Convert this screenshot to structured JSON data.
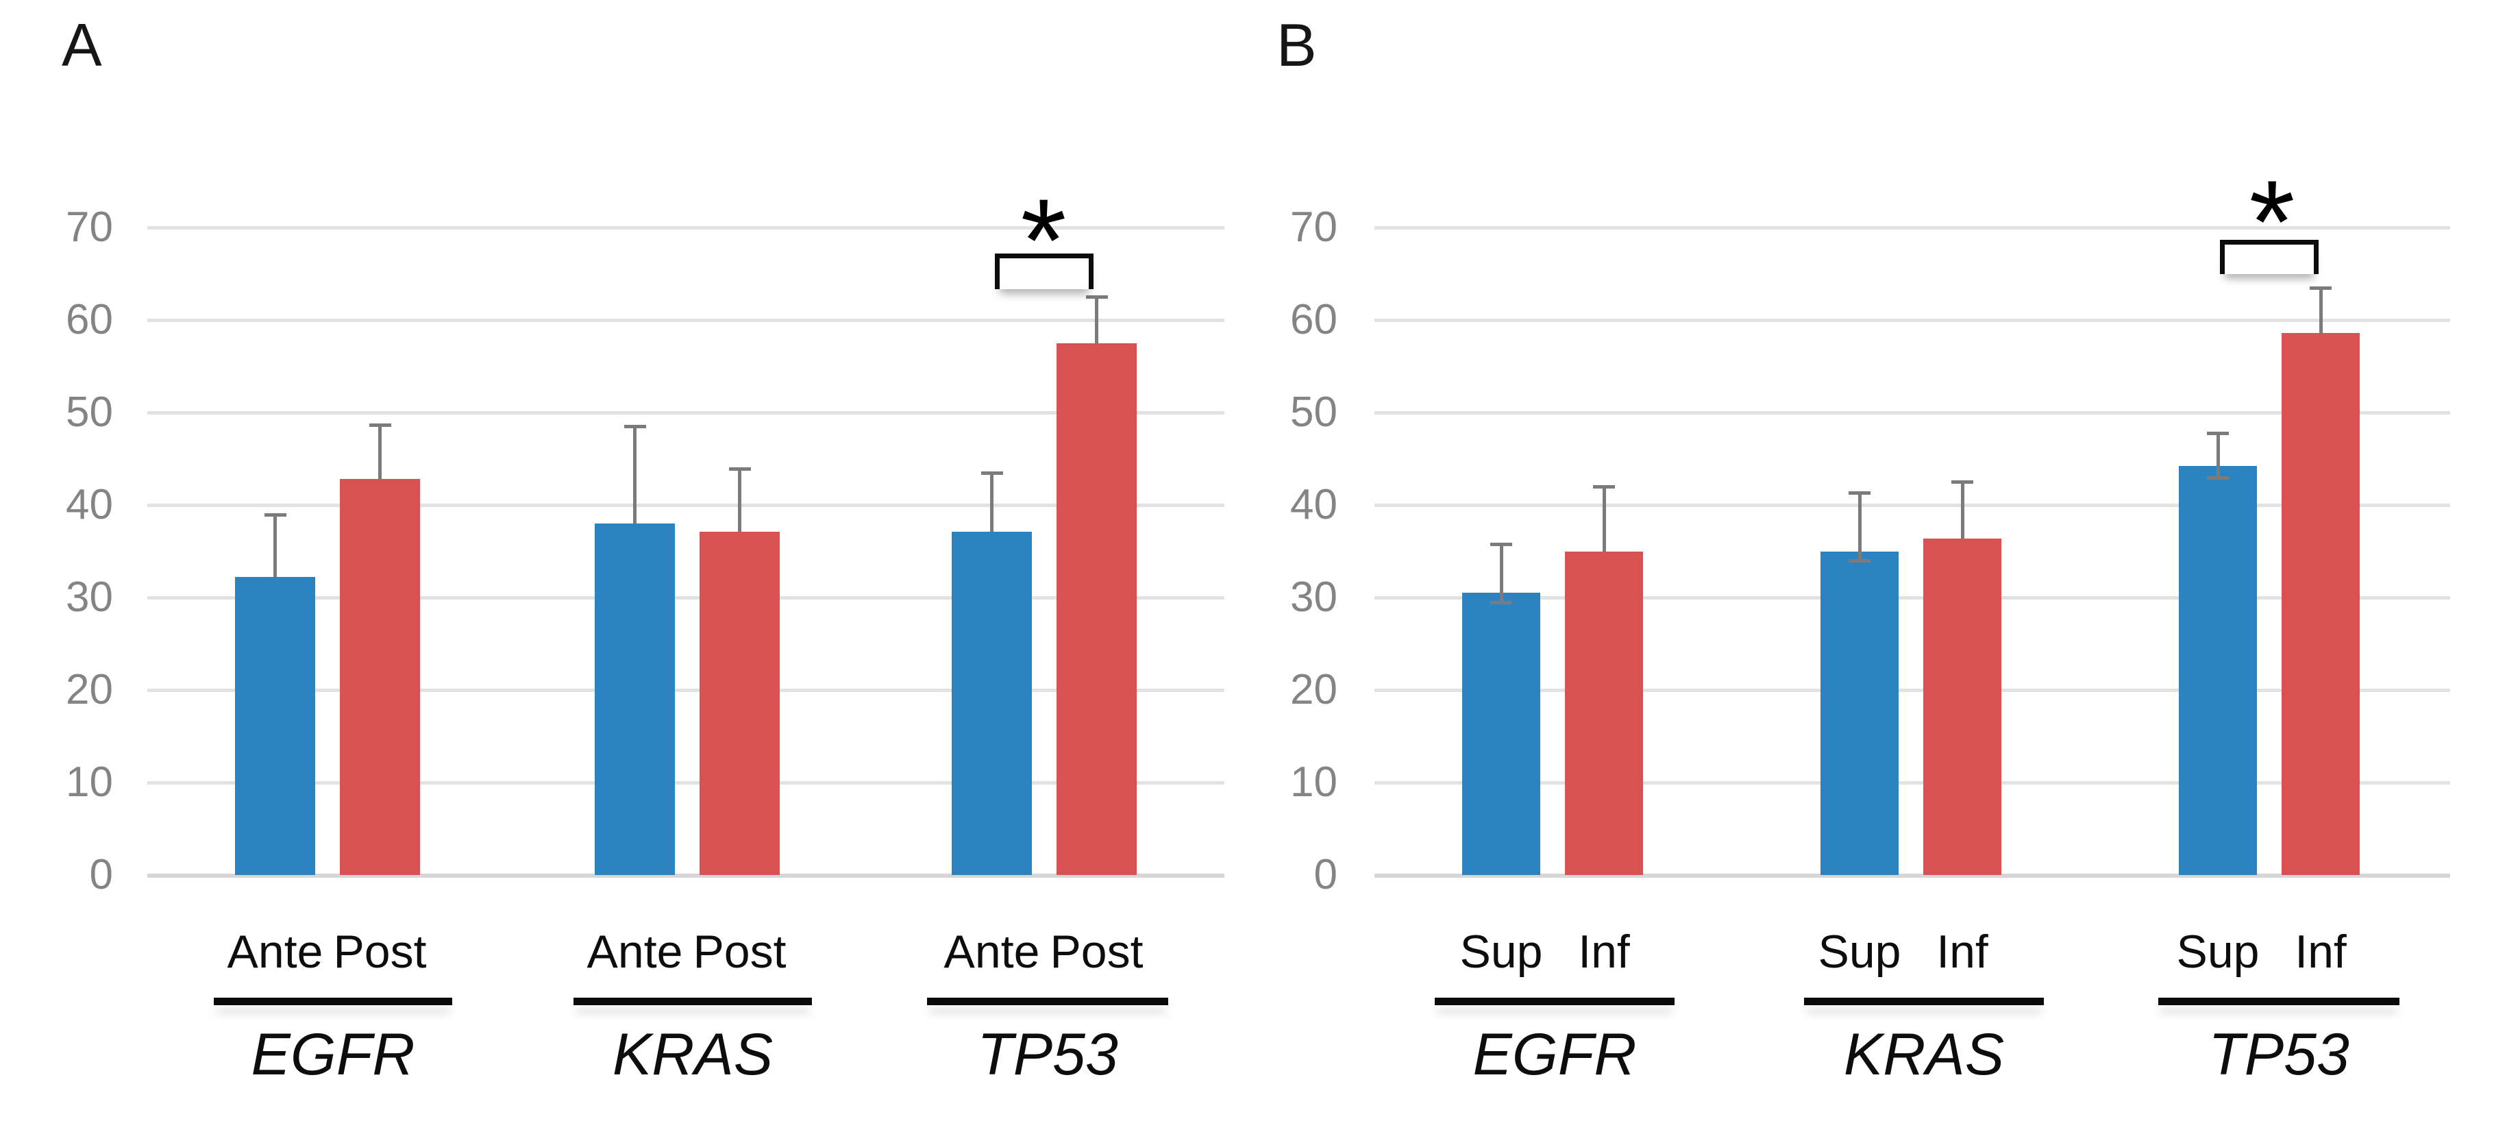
{
  "chart_data": [
    {
      "type": "bar",
      "panel_label": "A",
      "categories": [
        "EGFR",
        "KRAS",
        "TP53"
      ],
      "series": [
        {
          "name": "Ante",
          "color": "#2b84c0",
          "values": [
            32.2,
            38.0,
            37.1
          ],
          "errors_up": [
            39.0,
            48.5,
            43.5
          ]
        },
        {
          "name": "Post",
          "color": "#d95151",
          "values": [
            42.8,
            37.1,
            57.5
          ],
          "errors_up": [
            48.7,
            43.9,
            62.5
          ]
        }
      ],
      "ylim": [
        0,
        70
      ],
      "yticks": [
        0,
        10,
        20,
        30,
        40,
        50,
        60,
        70
      ],
      "grid": true,
      "xlabel": "",
      "ylabel": "",
      "legend_position": "none",
      "significance": {
        "category": "TP53",
        "between": [
          "Ante",
          "Post"
        ],
        "marker": "*"
      }
    },
    {
      "type": "bar",
      "panel_label": "B",
      "categories": [
        "EGFR",
        "KRAS",
        "TP53"
      ],
      "series": [
        {
          "name": "Sup",
          "color": "#2b84c0",
          "values": [
            30.5,
            35.0,
            44.2
          ],
          "errors_up": [
            35.8,
            41.3,
            47.8
          ],
          "errors_down": [
            29.5,
            34.0,
            43.0
          ]
        },
        {
          "name": "Inf",
          "color": "#d95151",
          "values": [
            35.0,
            36.4,
            58.6
          ],
          "errors_up": [
            42.0,
            42.5,
            63.5
          ]
        }
      ],
      "ylim": [
        0,
        70
      ],
      "yticks": [
        0,
        10,
        20,
        30,
        40,
        50,
        60,
        70
      ],
      "grid": true,
      "xlabel": "",
      "ylabel": "",
      "legend_position": "none",
      "significance": {
        "category": "TP53",
        "between": [
          "Sup",
          "Inf"
        ],
        "marker": "*"
      }
    }
  ],
  "colors": {
    "bar_blue": "#2b84c0",
    "bar_red": "#d95151",
    "error_bar": "#7b7b7b",
    "gridline": "#e2e2e2",
    "baseline": "#d6d6d6",
    "tick_text": "#848484",
    "text_black": "#0d0d0d"
  }
}
